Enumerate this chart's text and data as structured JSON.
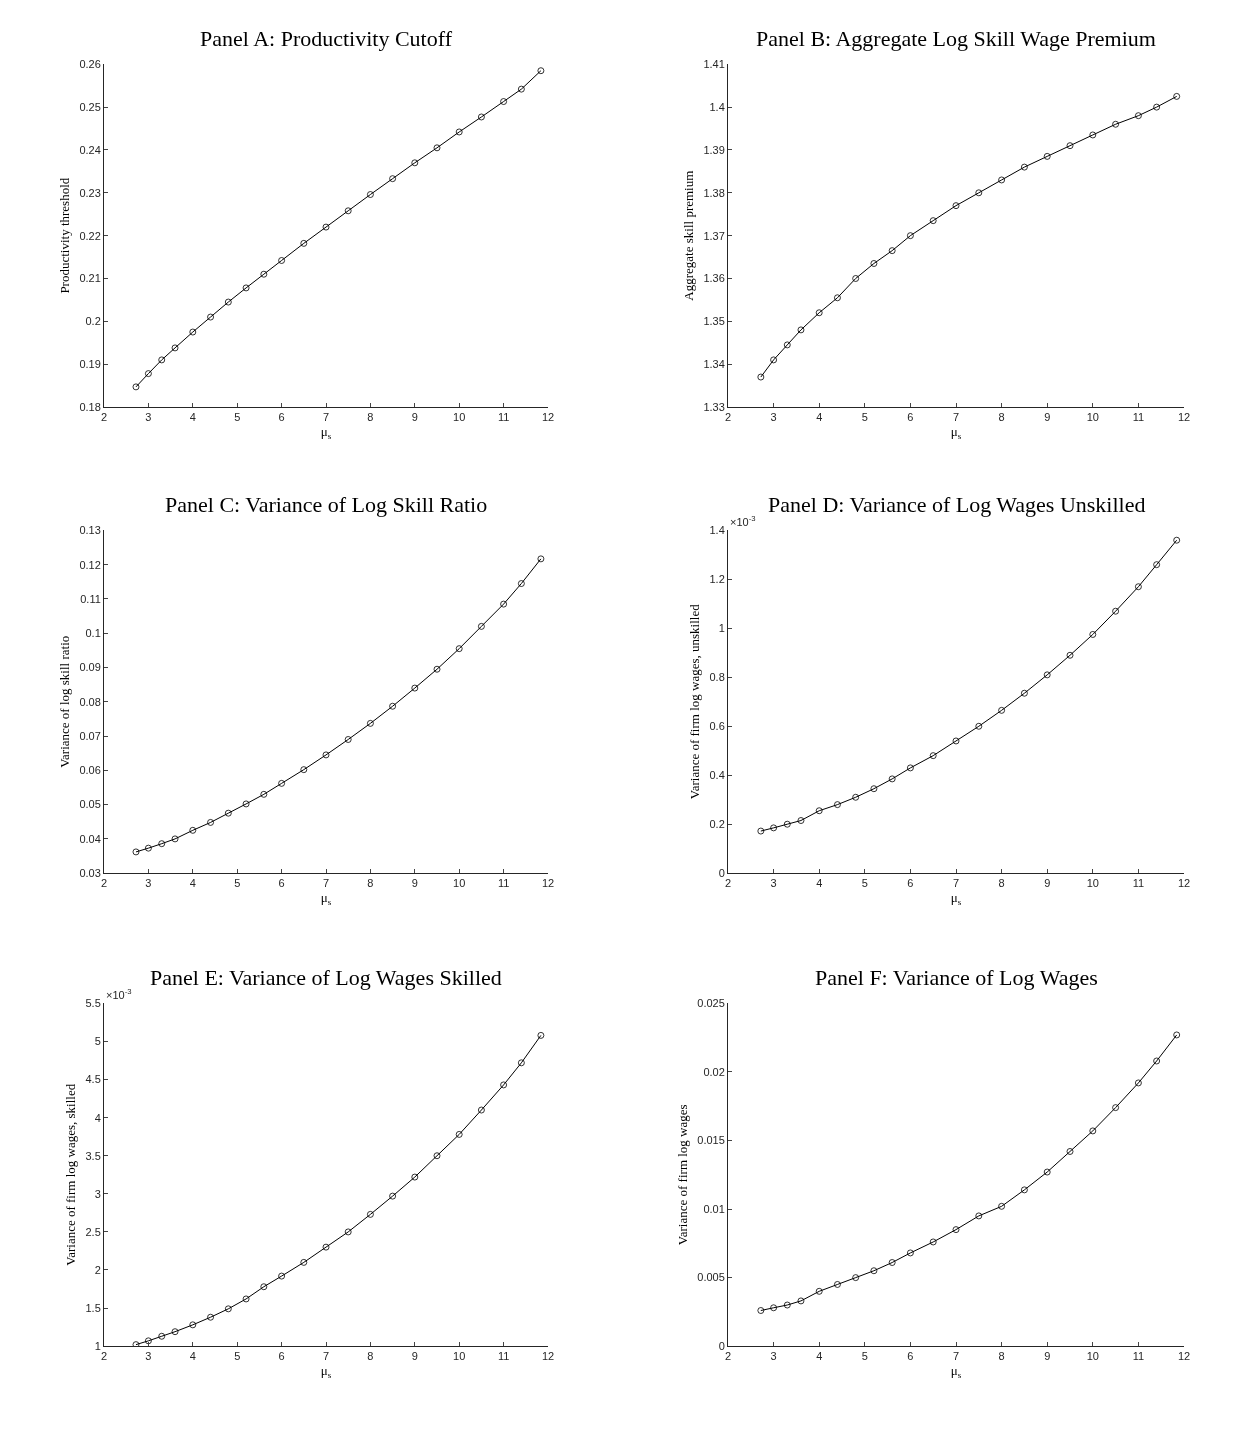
{
  "chart_data": [
    {
      "type": "line",
      "title": "Panel A: Productivity Cutoff",
      "xlabel": "μ$_{s}$",
      "ylabel": "Productivity threshold",
      "marker": "circle",
      "line_style": "solid",
      "x": [
        2.72,
        3,
        3.3,
        3.6,
        4,
        4.4,
        4.8,
        5.2,
        5.6,
        6,
        6.5,
        7,
        7.5,
        8,
        8.5,
        9,
        9.5,
        10,
        10.5,
        11,
        11.4,
        11.84
      ],
      "series": [
        {
          "color": "#000000",
          "values": [
            0.1847,
            0.1878,
            0.191,
            0.1938,
            0.1975,
            0.201,
            0.2045,
            0.2078,
            0.211,
            0.2142,
            0.2182,
            0.222,
            0.2258,
            0.2296,
            0.2333,
            0.237,
            0.2405,
            0.2442,
            0.2477,
            0.2513,
            0.2542,
            0.2585
          ]
        }
      ],
      "xlim": [
        2,
        12
      ],
      "xticks": [
        2,
        3,
        4,
        5,
        6,
        7,
        8,
        9,
        10,
        11,
        12
      ],
      "ylim": [
        0.18,
        0.26
      ],
      "yticks": [
        0.18,
        0.19,
        0.2,
        0.21,
        0.22,
        0.23,
        0.24,
        0.25,
        0.26
      ]
    },
    {
      "type": "line",
      "title": "Panel B: Aggregate Log Skill Wage Premium",
      "xlabel": "μ$_{s}$",
      "ylabel": "Aggregate skill premium",
      "marker": "circle",
      "line_style": "solid",
      "x": [
        2.72,
        3,
        3.3,
        3.6,
        4,
        4.4,
        4.8,
        5.2,
        5.6,
        6,
        6.5,
        7,
        7.5,
        8,
        8.5,
        9,
        9.5,
        10,
        10.5,
        11,
        11.4,
        11.84
      ],
      "series": [
        {
          "color": "#000000",
          "values": [
            1.337,
            1.341,
            1.3445,
            1.348,
            1.352,
            1.3555,
            1.36,
            1.3635,
            1.3665,
            1.37,
            1.3735,
            1.377,
            1.38,
            1.383,
            1.386,
            1.3885,
            1.391,
            1.3935,
            1.396,
            1.398,
            1.4,
            1.4025
          ]
        }
      ],
      "xlim": [
        2,
        12
      ],
      "xticks": [
        2,
        3,
        4,
        5,
        6,
        7,
        8,
        9,
        10,
        11,
        12
      ],
      "ylim": [
        1.33,
        1.41
      ],
      "yticks": [
        1.33,
        1.34,
        1.35,
        1.36,
        1.37,
        1.38,
        1.39,
        1.4,
        1.41
      ]
    },
    {
      "type": "line",
      "title": "Panel C: Variance of Log Skill Ratio",
      "xlabel": "μ$_{s}$",
      "ylabel": "Variance of log skill ratio",
      "marker": "circle",
      "line_style": "solid",
      "x": [
        2.72,
        3,
        3.3,
        3.6,
        4,
        4.4,
        4.8,
        5.2,
        5.6,
        6,
        6.5,
        7,
        7.5,
        8,
        8.5,
        9,
        9.5,
        10,
        10.5,
        11,
        11.4,
        11.84
      ],
      "series": [
        {
          "color": "#000000",
          "values": [
            0.0362,
            0.0373,
            0.0386,
            0.04,
            0.0425,
            0.0448,
            0.0475,
            0.0502,
            0.053,
            0.0562,
            0.0602,
            0.0645,
            0.069,
            0.0737,
            0.0787,
            0.084,
            0.0895,
            0.0955,
            0.102,
            0.1085,
            0.1145,
            0.1217
          ]
        }
      ],
      "xlim": [
        2,
        12
      ],
      "xticks": [
        2,
        3,
        4,
        5,
        6,
        7,
        8,
        9,
        10,
        11,
        12
      ],
      "ylim": [
        0.03,
        0.13
      ],
      "yticks": [
        0.03,
        0.04,
        0.05,
        0.06,
        0.07,
        0.08,
        0.09,
        0.1,
        0.11,
        0.12,
        0.13
      ]
    },
    {
      "type": "line",
      "title": "Panel D: Variance of Log Wages Unskilled",
      "xlabel": "μ$_{s}$",
      "ylabel": "Variance of firm log wages, unskilled",
      "annotations": [
        "×10$^{-3}$"
      ],
      "marker": "circle",
      "line_style": "solid",
      "x": [
        2.72,
        3,
        3.3,
        3.6,
        4,
        4.4,
        4.8,
        5.2,
        5.6,
        6,
        6.5,
        7,
        7.5,
        8,
        8.5,
        9,
        9.5,
        10,
        10.5,
        11,
        11.4,
        11.84
      ],
      "series": [
        {
          "color": "#000000",
          "values": [
            0.172,
            0.185,
            0.2,
            0.215,
            0.255,
            0.28,
            0.31,
            0.345,
            0.385,
            0.43,
            0.48,
            0.54,
            0.6,
            0.665,
            0.735,
            0.81,
            0.89,
            0.975,
            1.07,
            1.17,
            1.26,
            1.36
          ]
        }
      ],
      "xlim": [
        2,
        12
      ],
      "xticks": [
        2,
        3,
        4,
        5,
        6,
        7,
        8,
        9,
        10,
        11,
        12
      ],
      "ylim": [
        0,
        1.4
      ],
      "yticks": [
        0,
        0.2,
        0.4,
        0.6,
        0.8,
        1,
        1.2,
        1.4
      ]
    },
    {
      "type": "line",
      "title": "Panel E: Variance of Log Wages Skilled",
      "xlabel": "μ$_{s}$",
      "ylabel": "Variance of firm log wages, skilled",
      "annotations": [
        "×10$^{-3}$"
      ],
      "marker": "circle",
      "line_style": "solid",
      "x": [
        2.72,
        3,
        3.3,
        3.6,
        4,
        4.4,
        4.8,
        5.2,
        5.6,
        6,
        6.5,
        7,
        7.5,
        8,
        8.5,
        9,
        9.5,
        10,
        10.5,
        11,
        11.4,
        11.84
      ],
      "series": [
        {
          "color": "#000000",
          "values": [
            1.02,
            1.07,
            1.13,
            1.19,
            1.28,
            1.38,
            1.49,
            1.62,
            1.78,
            1.92,
            2.1,
            2.3,
            2.5,
            2.73,
            2.97,
            3.22,
            3.5,
            3.78,
            4.1,
            4.43,
            4.72,
            5.08
          ]
        }
      ],
      "xlim": [
        2,
        12
      ],
      "xticks": [
        2,
        3,
        4,
        5,
        6,
        7,
        8,
        9,
        10,
        11,
        12
      ],
      "ylim": [
        1,
        5.5
      ],
      "yticks": [
        1,
        1.5,
        2,
        2.5,
        3,
        3.5,
        4,
        4.5,
        5,
        5.5
      ]
    },
    {
      "type": "line",
      "title": "Panel F: Variance of Log Wages",
      "xlabel": "μ$_{s}$",
      "ylabel": "Variance of firm log wages",
      "marker": "circle",
      "line_style": "solid",
      "x": [
        2.72,
        3,
        3.3,
        3.6,
        4,
        4.4,
        4.8,
        5.2,
        5.6,
        6,
        6.5,
        7,
        7.5,
        8,
        8.5,
        9,
        9.5,
        10,
        10.5,
        11,
        11.4,
        11.84
      ],
      "series": [
        {
          "color": "#000000",
          "values": [
            0.0026,
            0.0028,
            0.003,
            0.0033,
            0.004,
            0.0045,
            0.005,
            0.0055,
            0.0061,
            0.0068,
            0.0076,
            0.0085,
            0.0095,
            0.0102,
            0.0114,
            0.0127,
            0.0142,
            0.0157,
            0.0174,
            0.0192,
            0.0208,
            0.0227
          ]
        }
      ],
      "xlim": [
        2,
        12
      ],
      "xticks": [
        2,
        3,
        4,
        5,
        6,
        7,
        8,
        9,
        10,
        11,
        12
      ],
      "ylim": [
        0,
        0.025
      ],
      "yticks": [
        0,
        0.005,
        0.01,
        0.015,
        0.02,
        0.025
      ]
    }
  ]
}
